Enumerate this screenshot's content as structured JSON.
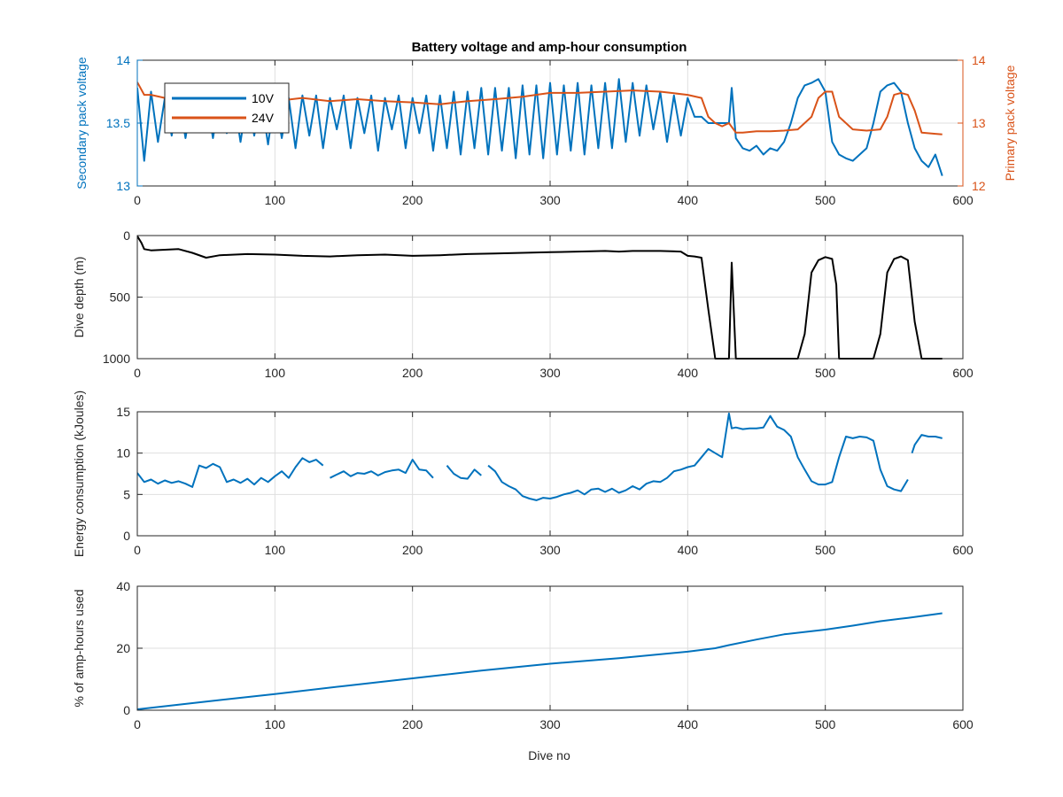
{
  "figure": {
    "title": "Battery voltage and amp-hour consumption",
    "shared_xlabel": "Dive no"
  },
  "chart_data": [
    {
      "type": "line",
      "title": "Battery voltage and amp-hour consumption",
      "xlabel": "",
      "ylabel": "Secondary pack voltage",
      "ylabel_right": "Primary pack voltage",
      "xlim": [
        0,
        600
      ],
      "ylim": [
        13,
        14
      ],
      "ylim_right": [
        12,
        14
      ],
      "xticks": [
        0,
        100,
        200,
        300,
        400,
        500,
        600
      ],
      "yticks": [
        13,
        13.5,
        14
      ],
      "yticks_right": [
        12,
        13,
        14
      ],
      "grid": true,
      "legend": {
        "placement": "top-left",
        "entries": [
          "10V",
          "24V"
        ]
      },
      "series": [
        {
          "name": "10V",
          "axis": "left",
          "color": "#0072BD",
          "x": [
            0,
            5,
            10,
            15,
            20,
            25,
            30,
            35,
            40,
            45,
            50,
            55,
            60,
            65,
            70,
            75,
            80,
            85,
            90,
            95,
            100,
            105,
            110,
            115,
            120,
            125,
            130,
            135,
            140,
            145,
            150,
            155,
            160,
            165,
            170,
            175,
            180,
            185,
            190,
            195,
            200,
            205,
            210,
            215,
            220,
            225,
            230,
            235,
            240,
            245,
            250,
            255,
            260,
            265,
            270,
            275,
            280,
            285,
            290,
            295,
            300,
            305,
            310,
            315,
            320,
            325,
            330,
            335,
            340,
            345,
            350,
            355,
            360,
            365,
            370,
            375,
            380,
            385,
            390,
            395,
            400,
            405,
            410,
            415,
            420,
            425,
            430,
            432,
            435,
            440,
            445,
            450,
            455,
            460,
            465,
            470,
            475,
            480,
            485,
            490,
            495,
            500,
            505,
            510,
            515,
            520,
            525,
            530,
            535,
            540,
            545,
            550,
            555,
            560,
            565,
            570,
            575,
            580,
            585
          ],
          "y": [
            13.78,
            13.2,
            13.75,
            13.35,
            13.7,
            13.4,
            13.72,
            13.38,
            13.7,
            13.45,
            13.72,
            13.38,
            13.7,
            13.42,
            13.72,
            13.35,
            13.7,
            13.4,
            13.7,
            13.33,
            13.72,
            13.38,
            13.7,
            13.3,
            13.72,
            13.4,
            13.72,
            13.3,
            13.7,
            13.45,
            13.72,
            13.3,
            13.7,
            13.42,
            13.72,
            13.28,
            13.7,
            13.45,
            13.72,
            13.3,
            13.7,
            13.42,
            13.72,
            13.28,
            13.72,
            13.3,
            13.75,
            13.25,
            13.75,
            13.3,
            13.78,
            13.25,
            13.78,
            13.28,
            13.78,
            13.22,
            13.8,
            13.25,
            13.8,
            13.22,
            13.82,
            13.25,
            13.8,
            13.28,
            13.82,
            13.25,
            13.8,
            13.3,
            13.82,
            13.3,
            13.85,
            13.35,
            13.82,
            13.4,
            13.8,
            13.45,
            13.75,
            13.35,
            13.72,
            13.4,
            13.7,
            13.55,
            13.55,
            13.5,
            13.5,
            13.5,
            13.5,
            13.78,
            13.38,
            13.3,
            13.28,
            13.32,
            13.25,
            13.3,
            13.28,
            13.35,
            13.5,
            13.7,
            13.8,
            13.82,
            13.85,
            13.75,
            13.35,
            13.25,
            13.22,
            13.2,
            13.25,
            13.3,
            13.5,
            13.75,
            13.8,
            13.82,
            13.75,
            13.5,
            13.3,
            13.2,
            13.15,
            13.25,
            13.08
          ]
        },
        {
          "name": "24V",
          "axis": "right",
          "color": "#D95319",
          "x": [
            0,
            5,
            10,
            20,
            40,
            60,
            80,
            100,
            120,
            140,
            160,
            180,
            200,
            220,
            240,
            260,
            280,
            300,
            320,
            340,
            360,
            380,
            400,
            410,
            415,
            420,
            425,
            430,
            435,
            440,
            450,
            460,
            470,
            480,
            490,
            495,
            500,
            505,
            510,
            520,
            530,
            540,
            545,
            550,
            555,
            560,
            565,
            570,
            580,
            585
          ],
          "y": [
            13.65,
            13.45,
            13.45,
            13.4,
            13.35,
            13.4,
            13.4,
            13.35,
            13.4,
            13.35,
            13.38,
            13.35,
            13.33,
            13.3,
            13.35,
            13.38,
            13.42,
            13.48,
            13.48,
            13.5,
            13.52,
            13.5,
            13.45,
            13.4,
            13.1,
            13.0,
            12.95,
            13.0,
            12.85,
            12.85,
            12.87,
            12.87,
            12.88,
            12.9,
            13.1,
            13.4,
            13.5,
            13.5,
            13.1,
            12.9,
            12.88,
            12.9,
            13.1,
            13.45,
            13.48,
            13.45,
            13.2,
            12.85,
            12.83,
            12.82
          ]
        }
      ]
    },
    {
      "type": "line",
      "title": "",
      "xlabel": "",
      "ylabel": "Dive depth (m)",
      "xlim": [
        0,
        600
      ],
      "ylim": [
        1000,
        0
      ],
      "y_reversed": true,
      "xticks": [
        0,
        100,
        200,
        300,
        400,
        500,
        600
      ],
      "yticks": [
        0,
        500,
        1000
      ],
      "grid": true,
      "series": [
        {
          "color": "#000000",
          "x": [
            0,
            3,
            5,
            10,
            20,
            30,
            40,
            50,
            60,
            80,
            100,
            120,
            140,
            160,
            180,
            200,
            220,
            240,
            260,
            280,
            300,
            320,
            340,
            350,
            360,
            380,
            395,
            400,
            405,
            410,
            415,
            420,
            425,
            428,
            430,
            432,
            435,
            440,
            460,
            475,
            480,
            485,
            490,
            495,
            500,
            505,
            508,
            510,
            520,
            530,
            535,
            540,
            545,
            550,
            555,
            560,
            565,
            570,
            580,
            585
          ],
          "y": [
            5,
            60,
            110,
            120,
            115,
            110,
            140,
            180,
            160,
            150,
            155,
            165,
            170,
            160,
            155,
            165,
            160,
            150,
            145,
            140,
            135,
            130,
            125,
            130,
            125,
            125,
            130,
            165,
            170,
            180,
            600,
            1000,
            1000,
            1000,
            1000,
            220,
            1000,
            1000,
            1000,
            1000,
            1000,
            800,
            300,
            200,
            175,
            190,
            400,
            1000,
            1000,
            1000,
            1000,
            800,
            300,
            190,
            170,
            200,
            700,
            1000,
            1000,
            1000
          ]
        }
      ]
    },
    {
      "type": "line",
      "title": "",
      "xlabel": "",
      "ylabel": "Energy consumption (kJoules)",
      "xlim": [
        0,
        600
      ],
      "ylim": [
        0,
        15
      ],
      "xticks": [
        0,
        100,
        200,
        300,
        400,
        500,
        600
      ],
      "yticks": [
        0,
        5,
        10,
        15
      ],
      "grid": true,
      "series": [
        {
          "color": "#0072BD",
          "x": [
            0,
            5,
            10,
            15,
            20,
            25,
            30,
            35,
            40,
            45,
            50,
            55,
            60,
            65,
            70,
            75,
            80,
            85,
            90,
            95,
            100,
            105,
            110,
            115,
            120,
            125,
            130,
            135,
            null,
            140,
            145,
            150,
            155,
            160,
            165,
            170,
            175,
            180,
            185,
            190,
            195,
            200,
            205,
            210,
            215,
            null,
            225,
            230,
            235,
            240,
            245,
            250,
            null,
            255,
            260,
            265,
            270,
            275,
            280,
            285,
            290,
            295,
            300,
            305,
            310,
            315,
            320,
            325,
            330,
            335,
            340,
            345,
            350,
            355,
            360,
            365,
            370,
            375,
            380,
            385,
            390,
            395,
            400,
            405,
            410,
            415,
            420,
            425,
            430,
            432,
            435,
            440,
            445,
            450,
            455,
            460,
            465,
            470,
            475,
            480,
            485,
            490,
            495,
            500,
            505,
            510,
            515,
            520,
            525,
            530,
            535,
            540,
            545,
            550,
            555,
            560,
            null,
            563,
            565,
            570,
            575,
            580,
            585
          ],
          "y": [
            7.6,
            6.5,
            6.8,
            6.3,
            6.7,
            6.4,
            6.6,
            6.3,
            5.9,
            8.5,
            8.2,
            8.7,
            8.3,
            6.5,
            6.8,
            6.4,
            6.9,
            6.2,
            7.0,
            6.5,
            7.2,
            7.8,
            7.0,
            8.3,
            9.4,
            8.9,
            9.2,
            8.5,
            null,
            7.0,
            7.4,
            7.8,
            7.2,
            7.6,
            7.5,
            7.8,
            7.3,
            7.7,
            7.9,
            8.0,
            7.6,
            9.2,
            8.0,
            7.9,
            7.0,
            null,
            8.5,
            7.5,
            7.0,
            6.9,
            8.0,
            7.3,
            null,
            8.5,
            7.8,
            6.5,
            6.0,
            5.6,
            4.8,
            4.5,
            4.3,
            4.6,
            4.5,
            4.7,
            5.0,
            5.2,
            5.5,
            5.0,
            5.6,
            5.7,
            5.3,
            5.7,
            5.2,
            5.5,
            6.0,
            5.6,
            6.3,
            6.6,
            6.5,
            7.0,
            7.8,
            8.0,
            8.3,
            8.5,
            9.5,
            10.5,
            10.0,
            9.5,
            14.8,
            13.0,
            13.1,
            12.9,
            13.0,
            13.0,
            13.1,
            14.5,
            13.2,
            12.8,
            12.0,
            9.5,
            8.0,
            6.6,
            6.2,
            6.2,
            6.5,
            9.5,
            12.0,
            11.8,
            12.0,
            11.9,
            11.5,
            8.0,
            6.0,
            5.6,
            5.4,
            6.8,
            null,
            10.0,
            11.0,
            12.2,
            12.0,
            12.0,
            11.8
          ]
        }
      ]
    },
    {
      "type": "line",
      "title": "",
      "xlabel": "Dive no",
      "ylabel": "% of amp-hours used",
      "xlim": [
        0,
        600
      ],
      "ylim": [
        0,
        40
      ],
      "xticks": [
        0,
        100,
        200,
        300,
        400,
        500,
        600
      ],
      "yticks": [
        0,
        20,
        40
      ],
      "grid": true,
      "series": [
        {
          "color": "#0072BD",
          "x": [
            0,
            50,
            100,
            150,
            200,
            250,
            300,
            350,
            400,
            420,
            430,
            450,
            470,
            500,
            520,
            540,
            560,
            585
          ],
          "y": [
            0.3,
            2.8,
            5.2,
            7.8,
            10.3,
            12.8,
            15.0,
            16.8,
            18.9,
            20.0,
            21.0,
            22.8,
            24.5,
            26.0,
            27.3,
            28.7,
            29.8,
            31.3
          ]
        }
      ]
    }
  ]
}
